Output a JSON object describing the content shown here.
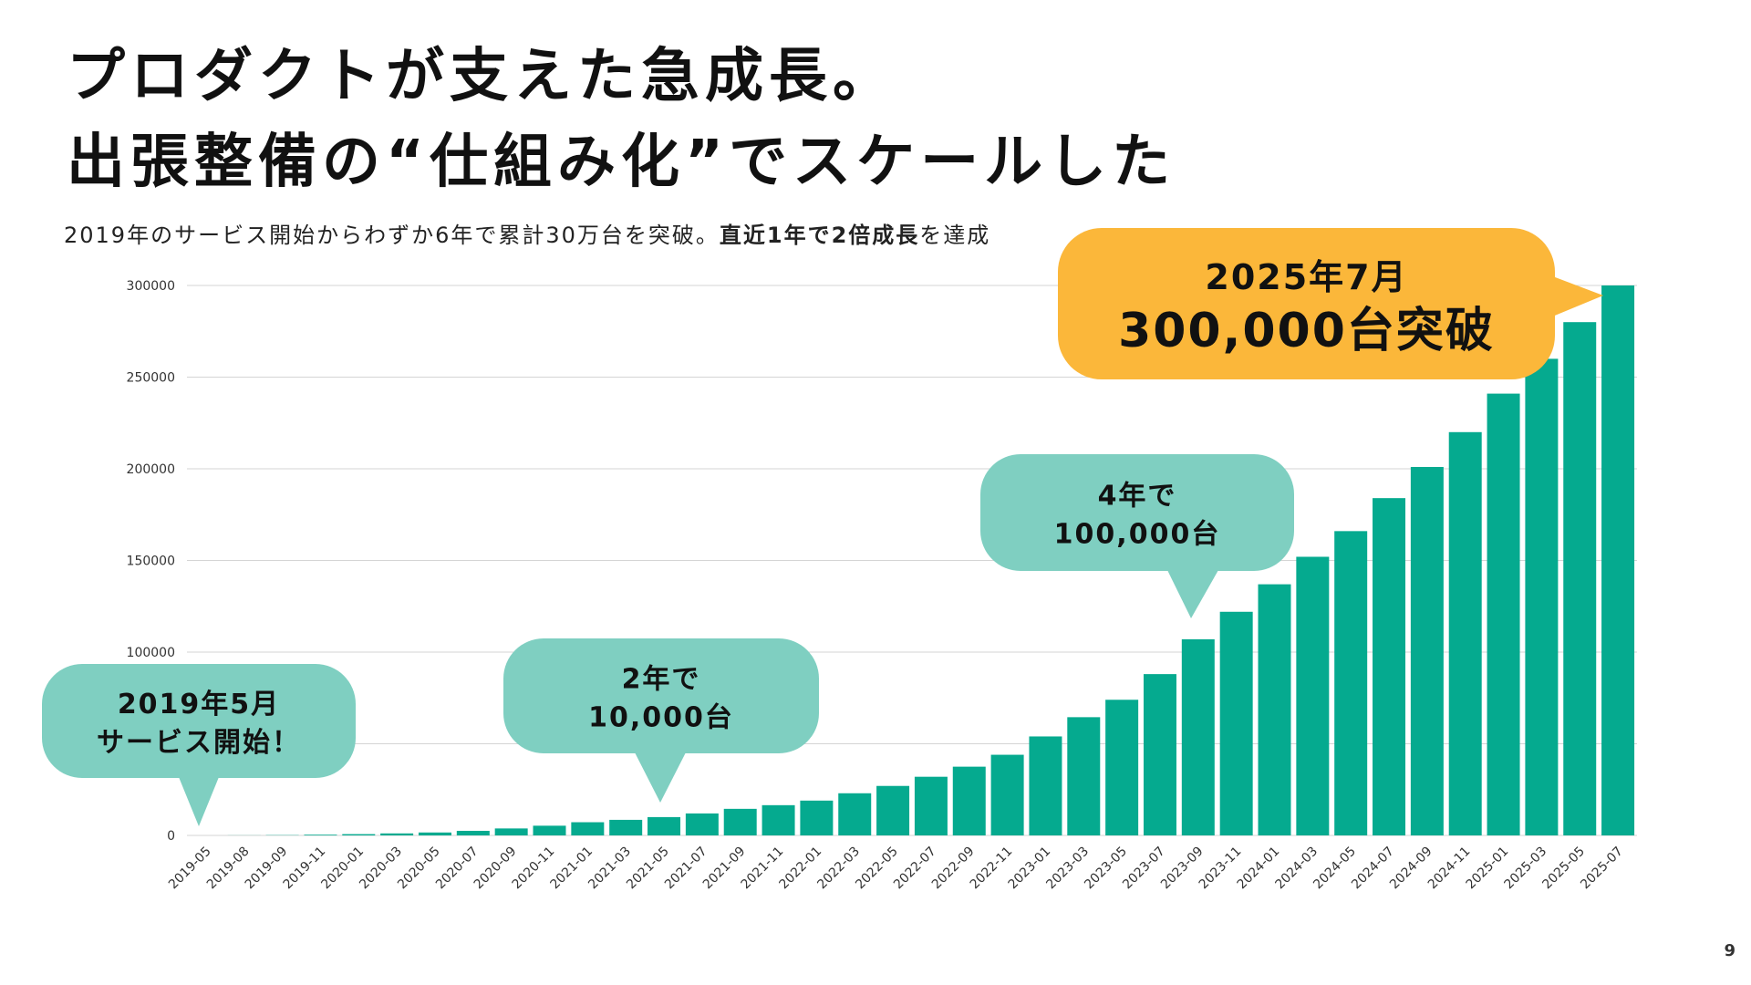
{
  "slide": {
    "title_line1": "プロダクトが支えた急成長。",
    "title_line2": "出張整備の“仕組み化”でスケールした",
    "subtitle_prefix": "2019年のサービス開始からわずか6年で累計30万台を突破。",
    "subtitle_bold1": "直近1年で2倍成長",
    "subtitle_suffix": "を達成",
    "page_number": "9"
  },
  "colors": {
    "bar": "#05AA8F",
    "bubble_teal": "#7FCFC1",
    "bubble_orange": "#FBB73A",
    "grid": "#D5D5D5"
  },
  "chart_data": {
    "type": "bar",
    "title": "",
    "xlabel": "",
    "ylabel": "",
    "ylim": [
      0,
      300000
    ],
    "y_ticks": [
      0,
      50000,
      100000,
      150000,
      200000,
      250000,
      300000
    ],
    "categories": [
      "2019-05",
      "2019-08",
      "2019-09",
      "2019-11",
      "2020-01",
      "2020-03",
      "2020-05",
      "2020-07",
      "2020-09",
      "2020-11",
      "2021-01",
      "2021-03",
      "2021-05",
      "2021-07",
      "2021-09",
      "2021-11",
      "2022-01",
      "2022-03",
      "2022-05",
      "2022-07",
      "2022-09",
      "2022-11",
      "2023-01",
      "2023-03",
      "2023-05",
      "2023-07",
      "2023-09",
      "2023-11",
      "2024-01",
      "2024-03",
      "2024-05",
      "2024-07",
      "2024-09",
      "2024-11",
      "2025-01",
      "2025-03",
      "2025-05",
      "2025-07"
    ],
    "values": [
      0,
      50,
      150,
      400,
      700,
      1100,
      1600,
      2500,
      3800,
      5300,
      7200,
      8500,
      10000,
      12000,
      14500,
      16500,
      19000,
      23000,
      27000,
      32000,
      37500,
      44000,
      54000,
      64500,
      74000,
      88000,
      107000,
      122000,
      137000,
      152000,
      166000,
      184000,
      201000,
      220000,
      241000,
      260000,
      280000,
      300000
    ],
    "annotations": [
      {
        "id": "start",
        "lines": [
          "2019年5月",
          "サービス開始！"
        ],
        "target_category": "2019-05"
      },
      {
        "id": "two-years",
        "lines": [
          "2年で",
          "10,000台"
        ],
        "target_category": "2021-05"
      },
      {
        "id": "four-years",
        "lines": [
          "4年で",
          "100,000台"
        ],
        "target_category": "2023-09"
      },
      {
        "id": "milestone",
        "lines": [
          "2025年7月",
          "300,000台突破"
        ],
        "target_category": "2025-07"
      }
    ]
  }
}
